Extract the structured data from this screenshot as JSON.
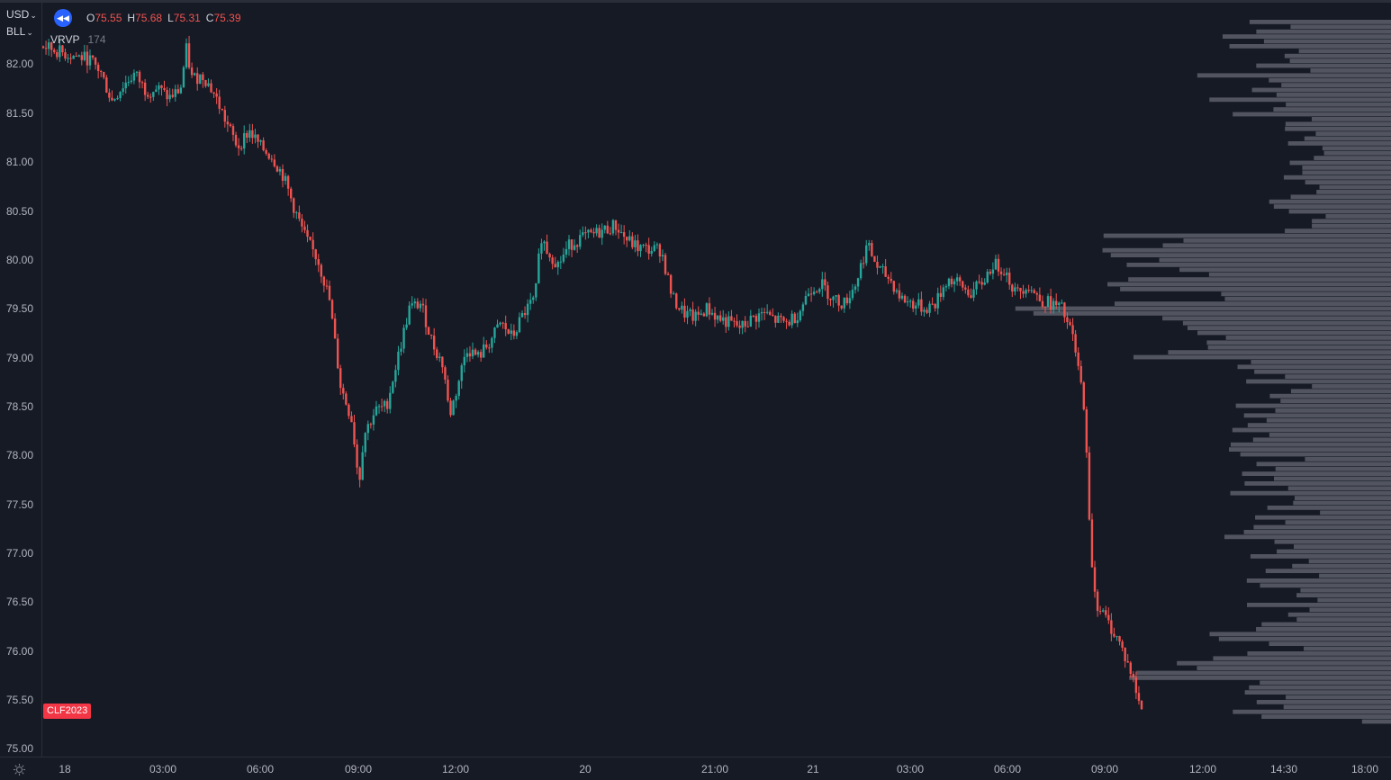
{
  "header": {
    "currency": "USD",
    "unit": "BLL"
  },
  "legend": {
    "open_label": "O",
    "open_value": "75.55",
    "high_label": "H",
    "high_value": "75.68",
    "low_label": "L",
    "low_value": "75.31",
    "close_label": "C",
    "close_value": "75.39"
  },
  "indicator": {
    "name": "VRVP",
    "value": "174"
  },
  "symbol": "CLF2023",
  "colors": {
    "up": "#26a69a",
    "down": "#ef5350",
    "background": "#161a25",
    "profile": "#5d606b",
    "badge": "#f23645"
  },
  "icons": {
    "replay": "rewind-icon",
    "settings": "gear-icon"
  },
  "chart_data": {
    "type": "candlestick",
    "y_ticks": [
      "82.00",
      "81.50",
      "81.00",
      "80.50",
      "80.00",
      "79.50",
      "79.00",
      "78.50",
      "78.00",
      "77.50",
      "77.00",
      "76.50",
      "76.00",
      "75.50",
      "75.00"
    ],
    "x_ticks": [
      "18",
      "03:00",
      "06:00",
      "09:00",
      "12:00",
      "20",
      "21:00",
      "21",
      "03:00",
      "06:00",
      "09:00",
      "12:00",
      "14:30",
      "18:00"
    ],
    "ylim": [
      75.0,
      82.0
    ],
    "price_path": [
      [
        0,
        82.18
      ],
      [
        2,
        82.1
      ],
      [
        4,
        82.05
      ],
      [
        5,
        81.92
      ],
      [
        6,
        81.62
      ],
      [
        7,
        81.78
      ],
      [
        8,
        81.9
      ],
      [
        9,
        81.72
      ],
      [
        10,
        81.75
      ],
      [
        11,
        81.65
      ],
      [
        12,
        81.74
      ],
      [
        12.5,
        82.15
      ],
      [
        13,
        81.85
      ],
      [
        14,
        81.88
      ],
      [
        15,
        81.68
      ],
      [
        16,
        81.4
      ],
      [
        17,
        81.15
      ],
      [
        18,
        81.32
      ],
      [
        19,
        81.15
      ],
      [
        20,
        81.05
      ],
      [
        21,
        80.85
      ],
      [
        22,
        80.5
      ],
      [
        23,
        80.2
      ],
      [
        24,
        80.0
      ],
      [
        25,
        79.6
      ],
      [
        26,
        78.7
      ],
      [
        27,
        78.35
      ],
      [
        27.6,
        77.7
      ],
      [
        28,
        78.2
      ],
      [
        29,
        78.45
      ],
      [
        30,
        78.5
      ],
      [
        31,
        79.0
      ],
      [
        32,
        79.5
      ],
      [
        33,
        79.55
      ],
      [
        34,
        79.15
      ],
      [
        35,
        78.9
      ],
      [
        35.5,
        78.4
      ],
      [
        36,
        78.6
      ],
      [
        37,
        79.1
      ],
      [
        38,
        79.0
      ],
      [
        39,
        79.15
      ],
      [
        40,
        79.35
      ],
      [
        41,
        79.2
      ],
      [
        42,
        79.45
      ],
      [
        43,
        79.6
      ],
      [
        43.5,
        80.25
      ],
      [
        44,
        80.1
      ],
      [
        45,
        79.95
      ],
      [
        46,
        80.15
      ],
      [
        47,
        80.22
      ],
      [
        48,
        80.25
      ],
      [
        49,
        80.3
      ],
      [
        50,
        80.35
      ],
      [
        51,
        80.2
      ],
      [
        52,
        80.12
      ],
      [
        53,
        80.1
      ],
      [
        54,
        80.1
      ],
      [
        55,
        79.6
      ],
      [
        56,
        79.45
      ],
      [
        57,
        79.4
      ],
      [
        58,
        79.5
      ],
      [
        59,
        79.4
      ],
      [
        60,
        79.35
      ],
      [
        61,
        79.3
      ],
      [
        62,
        79.4
      ],
      [
        63,
        79.45
      ],
      [
        64,
        79.38
      ],
      [
        65,
        79.35
      ],
      [
        66,
        79.45
      ],
      [
        67,
        79.7
      ],
      [
        68,
        79.75
      ],
      [
        69,
        79.6
      ],
      [
        70,
        79.55
      ],
      [
        71,
        79.75
      ],
      [
        72,
        80.15
      ],
      [
        73,
        79.9
      ],
      [
        74,
        79.8
      ],
      [
        75,
        79.6
      ],
      [
        76,
        79.55
      ],
      [
        77,
        79.5
      ],
      [
        78,
        79.55
      ],
      [
        79,
        79.8
      ],
      [
        80,
        79.75
      ],
      [
        81,
        79.65
      ],
      [
        82,
        79.75
      ],
      [
        83,
        79.95
      ],
      [
        84,
        79.9
      ],
      [
        85,
        79.65
      ],
      [
        86,
        79.75
      ],
      [
        87,
        79.6
      ],
      [
        88,
        79.55
      ],
      [
        89,
        79.5
      ],
      [
        90,
        79.2
      ],
      [
        91,
        78.5
      ],
      [
        91.5,
        77.1
      ],
      [
        92,
        76.5
      ],
      [
        93,
        76.3
      ],
      [
        94,
        76.1
      ],
      [
        95,
        75.8
      ],
      [
        96,
        75.39
      ]
    ]
  }
}
